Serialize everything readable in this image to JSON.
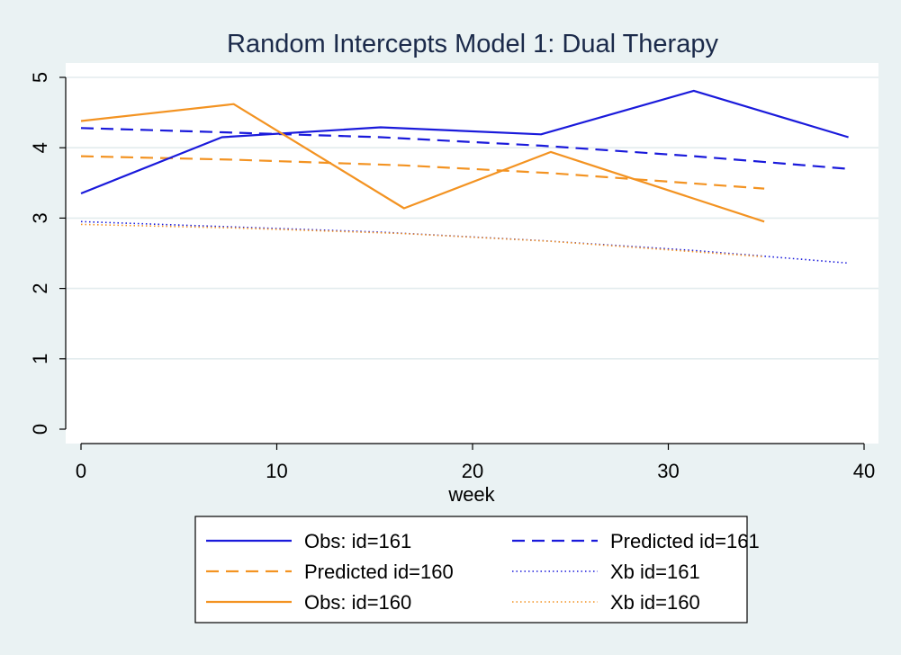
{
  "chart_data": {
    "type": "line",
    "title": "Random Intercepts Model 1: Dual Therapy",
    "xlabel": "week",
    "ylabel": "",
    "xlim": [
      -1,
      40
    ],
    "ylim": [
      -0.2,
      5.2
    ],
    "xticks": [
      0,
      10,
      20,
      30,
      40
    ],
    "yticks": [
      0,
      1,
      2,
      3,
      4,
      5
    ],
    "grid": "horizontal",
    "legend_position": "bottom",
    "colors": {
      "blue": "#1a1adb",
      "orange": "#f39322",
      "title": "#1b2a4a",
      "axis": "#000000"
    },
    "series": [
      {
        "name": "Obs: id=161",
        "color": "#1a1adb",
        "style": "solid",
        "x": [
          0,
          7.2,
          15.3,
          23.5,
          31.3,
          39.2
        ],
        "y": [
          3.35,
          4.15,
          4.29,
          4.19,
          4.81,
          4.15
        ]
      },
      {
        "name": "Predicted id=161",
        "color": "#1a1adb",
        "style": "dashed",
        "x": [
          0,
          7.2,
          15.3,
          23.5,
          31.3,
          39.2
        ],
        "y": [
          4.28,
          4.22,
          4.15,
          4.03,
          3.88,
          3.7
        ]
      },
      {
        "name": "Predicted id=160",
        "color": "#f39322",
        "style": "dashed",
        "x": [
          0,
          7.8,
          16.5,
          24.0,
          34.9
        ],
        "y": [
          3.88,
          3.83,
          3.75,
          3.64,
          3.42
        ]
      },
      {
        "name": "Xb id=161",
        "color": "#1a1adb",
        "style": "dotted",
        "x": [
          0,
          7.2,
          15.3,
          23.5,
          31.3,
          39.2
        ],
        "y": [
          2.95,
          2.88,
          2.8,
          2.68,
          2.54,
          2.36
        ]
      },
      {
        "name": "Obs: id=160",
        "color": "#f39322",
        "style": "solid",
        "x": [
          0,
          7.8,
          16.5,
          24.0,
          34.9
        ],
        "y": [
          4.38,
          4.62,
          3.14,
          3.94,
          2.95
        ]
      },
      {
        "name": "Xb id=160",
        "color": "#f39322",
        "style": "dotted",
        "x": [
          0,
          7.8,
          16.5,
          24.0,
          34.9
        ],
        "y": [
          2.91,
          2.86,
          2.78,
          2.67,
          2.45
        ]
      }
    ]
  }
}
